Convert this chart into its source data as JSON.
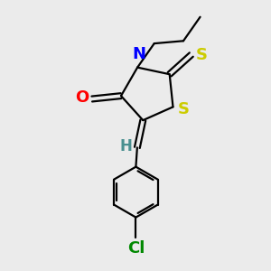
{
  "bg_color": "#ebebeb",
  "bond_color": "#000000",
  "atom_colors": {
    "O": "#ff0000",
    "N": "#0000ff",
    "S": "#cccc00",
    "Cl": "#008800",
    "H": "#4a9090",
    "C": "#000000"
  },
  "line_width": 1.6,
  "font_size": 13,
  "xlim": [
    0,
    10
  ],
  "ylim": [
    0,
    10
  ]
}
